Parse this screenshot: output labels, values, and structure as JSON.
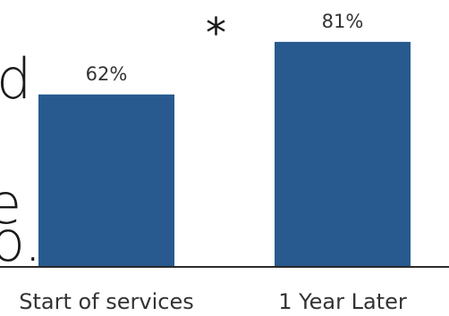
{
  "cutoff_text": {
    "line1": "d",
    "line2": "e",
    "line3": "o."
  },
  "significance_marker": "*",
  "chart_data": {
    "type": "bar",
    "categories": [
      "Start of services",
      "1 Year Later"
    ],
    "values": [
      62,
      81
    ],
    "data_labels": [
      "62%",
      "81%"
    ],
    "title": "",
    "xlabel": "",
    "ylabel": "",
    "ylim": [
      0,
      100
    ],
    "grid": false,
    "bar_color": "#285a8f",
    "baseline_color": "#2a2a2a"
  }
}
